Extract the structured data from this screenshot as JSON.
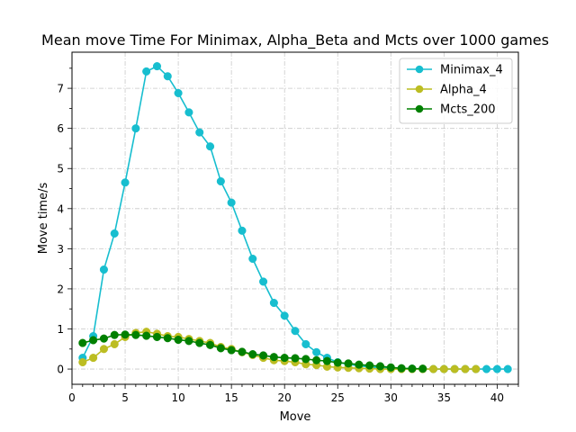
{
  "chart_data": {
    "type": "line",
    "title": "Mean move Time For Minimax, Alpha_Beta and Mcts over 1000 games",
    "xlabel": "Move",
    "ylabel": "Move time/s",
    "xlim": [
      0,
      42
    ],
    "ylim": [
      -0.38,
      7.9
    ],
    "xticks": [
      0,
      5,
      10,
      15,
      20,
      25,
      30,
      35,
      40
    ],
    "yticks": [
      0,
      1,
      2,
      3,
      4,
      5,
      6,
      7
    ],
    "grid": true,
    "legend": "top-right",
    "series": [
      {
        "name": "Minimax_4",
        "color": "#17becf",
        "x": [
          1,
          2,
          3,
          4,
          5,
          6,
          7,
          8,
          9,
          10,
          11,
          12,
          13,
          14,
          15,
          16,
          17,
          18,
          19,
          20,
          21,
          22,
          23,
          24,
          25,
          26,
          27,
          28,
          29,
          30,
          31,
          32,
          33,
          34,
          35,
          36,
          37,
          38,
          39,
          40,
          41
        ],
        "y": [
          0.28,
          0.82,
          2.48,
          3.38,
          4.65,
          6.0,
          7.42,
          7.55,
          7.3,
          6.88,
          6.4,
          5.9,
          5.55,
          4.68,
          4.15,
          3.45,
          2.75,
          2.18,
          1.65,
          1.33,
          0.95,
          0.62,
          0.42,
          0.28,
          0.17,
          0.12,
          0.08,
          0.05,
          0.03,
          0.02,
          0.01,
          0.01,
          0.0,
          0.0,
          0.0,
          0.0,
          0.0,
          0.0,
          0.0,
          0.0,
          0.0
        ]
      },
      {
        "name": "Alpha_4",
        "color": "#bcbd22",
        "x": [
          1,
          2,
          3,
          4,
          5,
          6,
          7,
          8,
          9,
          10,
          11,
          12,
          13,
          14,
          15,
          16,
          17,
          18,
          19,
          20,
          21,
          22,
          23,
          24,
          25,
          26,
          27,
          28,
          29,
          30,
          31,
          32,
          33,
          34,
          35,
          36,
          37,
          38
        ],
        "y": [
          0.17,
          0.28,
          0.5,
          0.62,
          0.8,
          0.9,
          0.93,
          0.88,
          0.82,
          0.8,
          0.75,
          0.7,
          0.65,
          0.55,
          0.5,
          0.42,
          0.35,
          0.28,
          0.22,
          0.2,
          0.17,
          0.12,
          0.1,
          0.06,
          0.04,
          0.03,
          0.02,
          0.01,
          0.0,
          0.0,
          0.0,
          0.0,
          0.0,
          0.0,
          0.0,
          0.0,
          0.0,
          0.0
        ]
      },
      {
        "name": "Mcts_200",
        "color": "#008000",
        "x": [
          1,
          2,
          3,
          4,
          5,
          6,
          7,
          8,
          9,
          10,
          11,
          12,
          13,
          14,
          15,
          16,
          17,
          18,
          19,
          20,
          21,
          22,
          23,
          24,
          25,
          26,
          27,
          28,
          29,
          30,
          31,
          32,
          33
        ],
        "y": [
          0.65,
          0.72,
          0.76,
          0.85,
          0.86,
          0.85,
          0.83,
          0.8,
          0.77,
          0.73,
          0.7,
          0.65,
          0.6,
          0.52,
          0.47,
          0.43,
          0.37,
          0.34,
          0.3,
          0.28,
          0.27,
          0.25,
          0.22,
          0.2,
          0.16,
          0.14,
          0.11,
          0.09,
          0.07,
          0.04,
          0.02,
          0.01,
          0.01
        ]
      }
    ]
  }
}
